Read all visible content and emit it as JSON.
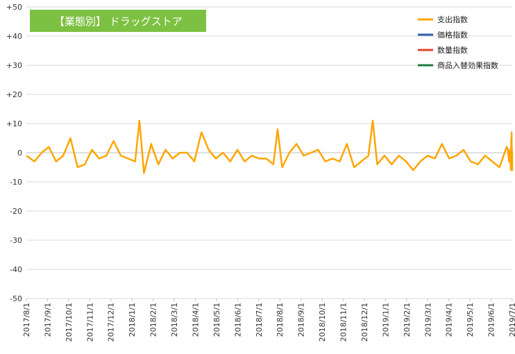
{
  "chart_data": {
    "type": "line",
    "title": "【業態別】 ドラッグストア",
    "title_bg": "#7dc142",
    "xlabel": "",
    "ylabel": "",
    "ylim": [
      -50,
      50
    ],
    "yticks": [
      "+50",
      "+40",
      "+30",
      "+20",
      "+10",
      "0",
      "-10",
      "-20",
      "-30",
      "-40",
      "-50"
    ],
    "ytick_values": [
      50,
      40,
      30,
      20,
      10,
      0,
      -10,
      -20,
      -30,
      -40,
      -50
    ],
    "grid": true,
    "legend_position": "top-right",
    "xtick_labels": [
      "2017/8/1",
      "2017/9/1",
      "2017/10/1",
      "2017/11/1",
      "2017/12/1",
      "2018/1/1",
      "2018/2/1",
      "2018/3/1",
      "2018/4/1",
      "2018/5/1",
      "2018/6/1",
      "2018/7/1",
      "2018/8/1",
      "2018/9/1",
      "2018/10/1",
      "2018/11/1",
      "2018/12/1",
      "2019/1/1",
      "2019/2/1",
      "2019/3/1",
      "2019/4/1",
      "2019/5/1",
      "2019/6/1",
      "2019/7/1"
    ],
    "series": [
      {
        "name": "支出指数",
        "color": "#ffa500",
        "values": [
          -1,
          -3,
          0,
          2,
          -3,
          -1,
          5,
          -5,
          -4,
          1,
          -2,
          -1,
          4,
          -1,
          -2,
          -3,
          11,
          -7,
          3,
          -4,
          1,
          -2,
          0,
          0,
          -3,
          7,
          1,
          -2,
          0,
          -3,
          1,
          -3,
          -1,
          -2,
          -2,
          -4,
          8,
          -5,
          0,
          3,
          -1,
          0,
          1,
          -3,
          -2,
          -3,
          3,
          -5,
          -3,
          -1,
          11,
          -4,
          -1,
          -4,
          -1,
          -3,
          -6,
          -3,
          -1,
          -2,
          3,
          -2,
          -1,
          1,
          -3,
          -4,
          -1,
          -3,
          -5,
          2,
          1,
          -3,
          1,
          -4,
          -6,
          5,
          -4,
          7,
          -4,
          2,
          1,
          -3,
          -1,
          -6,
          -5,
          0,
          -6
        ],
        "time_fraction": [
          0,
          0.0167,
          0.0315,
          0.0463,
          0.0611,
          0.0759,
          0.0907,
          0.1055,
          0.1203,
          0.1351,
          0.1499,
          0.1647,
          0.1795,
          0.1943,
          0.2091,
          0.2239,
          0.2327,
          0.2421,
          0.2568,
          0.2716,
          0.2864,
          0.3012,
          0.316,
          0.3308,
          0.3456,
          0.3604,
          0.3752,
          0.39,
          0.4048,
          0.4196,
          0.4344,
          0.4492,
          0.464,
          0.4788,
          0.4936,
          0.5084,
          0.5171,
          0.5265,
          0.5413,
          0.5561,
          0.5709,
          0.5857,
          0.6005,
          0.6153,
          0.6301,
          0.6449,
          0.6597,
          0.6745,
          0.6893,
          0.7041,
          0.7129,
          0.7222,
          0.737,
          0.7518,
          0.7666,
          0.7814,
          0.7962,
          0.811,
          0.8258,
          0.8406,
          0.8554,
          0.8702,
          0.885,
          0.8998,
          0.9146,
          0.9294,
          0.9442,
          0.959,
          0.9738,
          0.9886,
          0.9912,
          0.9935,
          0.9952,
          0.9965,
          0.9974,
          0.998,
          0.9984,
          0.9988,
          0.999,
          0.9992,
          0.9994,
          0.9996,
          0.9997,
          0.9998,
          0.9999,
          1,
          1
        ]
      }
    ]
  },
  "legend": [
    {
      "label": "支出指数",
      "color": "#ffa500"
    },
    {
      "label": "価格指数",
      "color": "#2e5fb0"
    },
    {
      "label": "数量指数",
      "color": "#e0452b"
    },
    {
      "label": "商品入替効果指数",
      "color": "#1f7a3f"
    }
  ]
}
